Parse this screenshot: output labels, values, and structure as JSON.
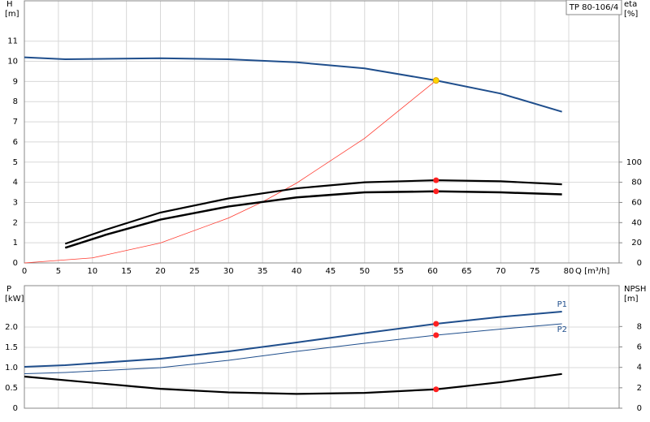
{
  "chart_data": [
    {
      "type": "line",
      "title": "TP 80-106/4",
      "y_label": "H",
      "y_unit": "[m]",
      "y2_label": "eta",
      "y2_unit": "[%]",
      "x_label": "Q [m³/h]",
      "xlim": [
        0,
        87.4
      ],
      "xticks": [
        0,
        5,
        10,
        15,
        20,
        25,
        30,
        35,
        40,
        45,
        50,
        55,
        60,
        65,
        70,
        75,
        80
      ],
      "ylim": [
        0,
        13
      ],
      "yticks": [
        0,
        1,
        2,
        3,
        4,
        5,
        6,
        7,
        8,
        9,
        10,
        11
      ],
      "y2lim": [
        0,
        260
      ],
      "y2ticks": [
        0,
        20,
        40,
        60,
        80,
        100
      ],
      "grid": true,
      "series": [
        {
          "color": "#1f4e8c",
          "width": 2,
          "x": [
            0,
            6,
            20,
            30,
            40,
            50,
            60.5,
            70,
            79
          ],
          "values": [
            10.2,
            10.1,
            10.15,
            10.1,
            9.95,
            9.65,
            9.05,
            8.4,
            7.5
          ]
        },
        {
          "color": "#ff3b30",
          "width": 0.8,
          "x": [
            0,
            10,
            20,
            30,
            35,
            40,
            50,
            60.5
          ],
          "values": [
            0,
            0.25,
            0.99,
            2.23,
            3.03,
            3.96,
            6.18,
            9.05
          ]
        },
        {
          "color": "#000000",
          "width": 2.2,
          "axis": "y2",
          "x": [
            6,
            12,
            20,
            30,
            40,
            50,
            60.5,
            70,
            79
          ],
          "values": [
            19,
            33,
            50,
            64,
            74,
            80,
            82,
            81,
            78
          ]
        },
        {
          "color": "#000000",
          "width": 2.5,
          "axis": "y2",
          "x": [
            6,
            12,
            20,
            30,
            40,
            50,
            60.5,
            70,
            79
          ],
          "values": [
            15,
            28,
            43,
            56,
            65,
            70,
            71,
            70,
            68
          ]
        }
      ],
      "points": [
        {
          "x": 60.5,
          "y": 82,
          "axis": "y2",
          "color": "#ff2020"
        },
        {
          "x": 60.5,
          "y": 71,
          "axis": "y2",
          "color": "#ff2020"
        },
        {
          "x": 60.5,
          "y": 9.05,
          "color": "#ffd700"
        }
      ]
    },
    {
      "type": "line",
      "y_label": "P",
      "y_unit": "[kW]",
      "y2_label": "NPSH",
      "y2_unit": "[m]",
      "xlim": [
        0,
        87.4
      ],
      "xticks": [
        0,
        5,
        10,
        15,
        20,
        25,
        30,
        35,
        40,
        45,
        50,
        55,
        60,
        65,
        70,
        75,
        80
      ],
      "ylim": [
        0,
        3.02
      ],
      "yticks": [
        0,
        0.5,
        {
          "value": 1,
          "label": "1.0"
        },
        1.5,
        {
          "value": 2,
          "label": "2.0"
        }
      ],
      "y2lim": [
        0,
        12
      ],
      "y2ticks": [
        0,
        2,
        4,
        6,
        8
      ],
      "grid": true,
      "series": [
        {
          "name": "P1",
          "color": "#1f4e8c",
          "width": 2,
          "x": [
            0,
            6,
            20,
            30,
            40,
            50,
            60.5,
            70,
            79
          ],
          "values": [
            1.02,
            1.06,
            1.22,
            1.4,
            1.62,
            1.85,
            2.08,
            2.25,
            2.38
          ]
        },
        {
          "name": "P2",
          "color": "#1f4e8c",
          "width": 1,
          "x": [
            0,
            6,
            20,
            30,
            40,
            50,
            60.5,
            70,
            79
          ],
          "values": [
            0.85,
            0.88,
            1.0,
            1.18,
            1.4,
            1.6,
            1.8,
            1.95,
            2.08
          ]
        },
        {
          "color": "#000000",
          "width": 2.2,
          "axis": "y2",
          "x": [
            0,
            10,
            20,
            30,
            40,
            50,
            60.5,
            70,
            79
          ],
          "values": [
            3.1,
            2.5,
            1.9,
            1.55,
            1.4,
            1.5,
            1.85,
            2.55,
            3.35
          ]
        }
      ],
      "points": [
        {
          "x": 60.5,
          "y": 2.08,
          "color": "#ff2020"
        },
        {
          "x": 60.5,
          "y": 1.8,
          "color": "#ff2020"
        },
        {
          "x": 60.5,
          "y": 1.85,
          "axis": "y2",
          "color": "#ff2020"
        }
      ]
    }
  ]
}
